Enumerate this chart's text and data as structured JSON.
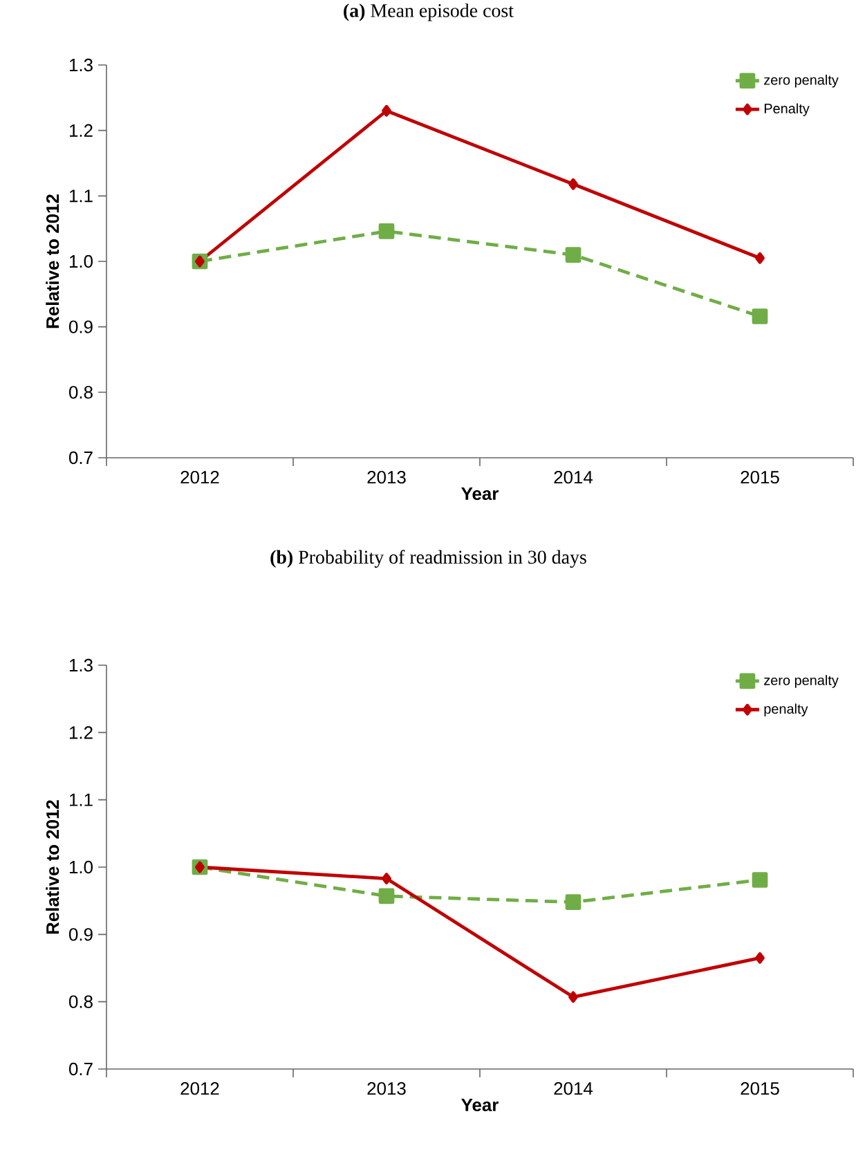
{
  "chart_data": [
    {
      "type": "line",
      "title": "**(a)** Mean episode cost",
      "xlabel": "Year",
      "ylabel": "Relative to 2012",
      "categories": [
        "2012",
        "2013",
        "2014",
        "2015"
      ],
      "series": [
        {
          "name": "zero penalty",
          "color": "#70ad47",
          "marker": "square",
          "line_style": "dashed",
          "values": [
            1.0,
            1.046,
            1.01,
            0.916
          ]
        },
        {
          "name": "Penalty",
          "color": "#c00000",
          "marker": "diamond",
          "line_style": "solid",
          "values": [
            1.0,
            1.23,
            1.118,
            1.005
          ]
        }
      ],
      "ylim": [
        0.7,
        1.3
      ],
      "yticks": [
        0.7,
        0.8,
        0.9,
        {
          "value": 1,
          "label": "1.0"
        },
        1.1,
        1.2,
        1.3
      ],
      "legend": "top right",
      "grid": false
    },
    {
      "type": "line",
      "title": "**(b)** Probability of readmission in 30 days",
      "xlabel": "Year",
      "ylabel": "Relative to 2012",
      "categories": [
        "2012",
        "2013",
        "2014",
        "2015"
      ],
      "series": [
        {
          "name": "zero penalty",
          "color": "#70ad47",
          "marker": "square",
          "line_style": "dashed",
          "values": [
            1.0,
            0.957,
            0.948,
            0.981
          ]
        },
        {
          "name": "penalty",
          "color": "#c00000",
          "marker": "diamond",
          "line_style": "solid",
          "values": [
            1.0,
            0.983,
            0.807,
            0.865
          ]
        }
      ],
      "ylim": [
        0.7,
        1.3
      ],
      "yticks": [
        0.7,
        0.8,
        0.9,
        {
          "value": 1,
          "label": "1.0"
        },
        1.1,
        1.2,
        1.3
      ],
      "legend": "top right",
      "grid": false
    }
  ]
}
